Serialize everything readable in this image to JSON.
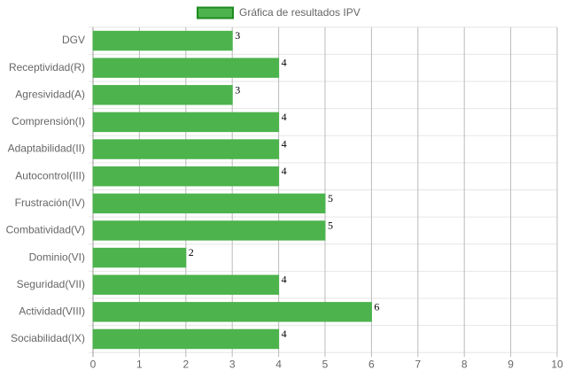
{
  "chart_data": {
    "type": "bar",
    "orientation": "horizontal",
    "legend": "top",
    "series": [
      {
        "name": "Gráfica de resultados IPV",
        "color": "#4db34d",
        "border_color": "#1e8a1e",
        "values": [
          3,
          4,
          3,
          4,
          4,
          4,
          5,
          5,
          2,
          4,
          6,
          4
        ]
      }
    ],
    "categories": [
      "DGV",
      "Receptividad(R)",
      "Agresividad(A)",
      "Comprensión(I)",
      "Adaptabilidad(II)",
      "Autocontrol(III)",
      "Frustración(IV)",
      "Combatividad(V)",
      "Dominio(VI)",
      "Seguridad(VII)",
      "Actividad(VIII)",
      "Sociabilidad(IX)"
    ],
    "xlim": [
      0,
      10
    ],
    "xticks": [
      0,
      1,
      2,
      3,
      4,
      5,
      6,
      7,
      8,
      9,
      10
    ],
    "grid": true,
    "data_labels": true
  }
}
